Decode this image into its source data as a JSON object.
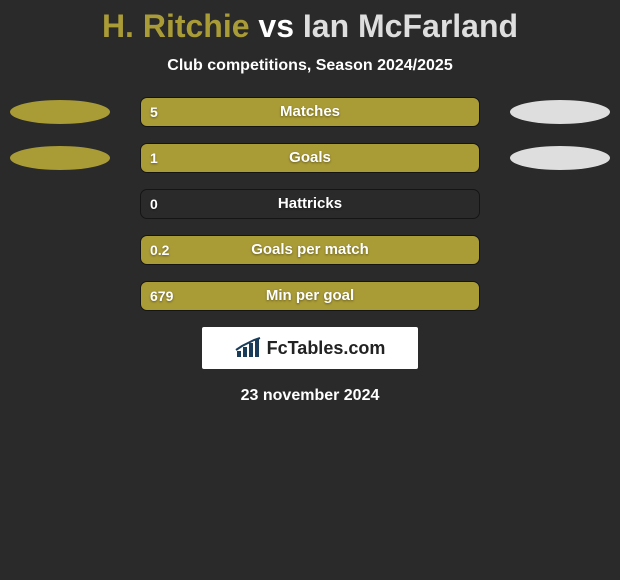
{
  "colors": {
    "background": "#2a2a2a",
    "player1": "#a99b36",
    "player2": "#dedede",
    "text": "#ffffff",
    "logo_bg": "#ffffff",
    "logo_text": "#222222",
    "logo_icon": "#183c5a"
  },
  "title": {
    "player1": "H. Ritchie",
    "vs": "vs",
    "player2": "Ian McFarland"
  },
  "subtitle": "Club competitions, Season 2024/2025",
  "bar_track_width": 340,
  "stats": [
    {
      "label": "Matches",
      "left_val": "5",
      "right_val": "",
      "left_pct": 100,
      "right_pct": 0,
      "ellipse_left": true,
      "ellipse_right": true
    },
    {
      "label": "Goals",
      "left_val": "1",
      "right_val": "",
      "left_pct": 100,
      "right_pct": 0,
      "ellipse_left": true,
      "ellipse_right": true
    },
    {
      "label": "Hattricks",
      "left_val": "0",
      "right_val": "",
      "left_pct": 0,
      "right_pct": 0,
      "ellipse_left": false,
      "ellipse_right": false
    },
    {
      "label": "Goals per match",
      "left_val": "0.2",
      "right_val": "",
      "left_pct": 100,
      "right_pct": 0,
      "ellipse_left": false,
      "ellipse_right": false
    },
    {
      "label": "Min per goal",
      "left_val": "679",
      "right_val": "",
      "left_pct": 100,
      "right_pct": 0,
      "ellipse_left": false,
      "ellipse_right": false
    }
  ],
  "logo": {
    "brand": "FcTables.com"
  },
  "date": "23 november 2024"
}
